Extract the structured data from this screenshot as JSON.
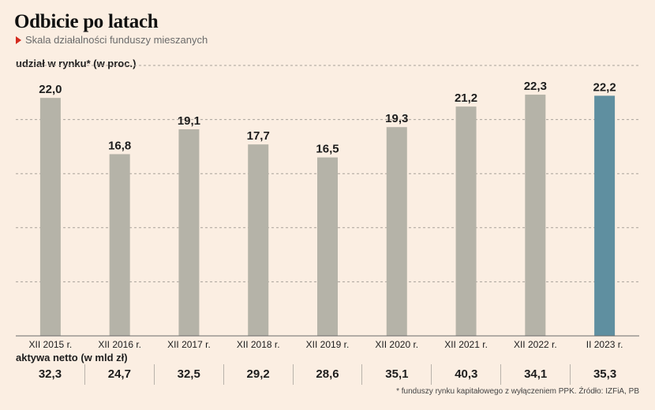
{
  "header": {
    "title": "Odbicie po latach",
    "subtitle": "Skala działalności funduszy mieszanych"
  },
  "y_axis_label": "udział w rynku* (w proc.)",
  "net_assets": {
    "label": "aktywa netto (w mld zł)",
    "values": [
      "32,3",
      "24,7",
      "32,5",
      "29,2",
      "28,6",
      "35,1",
      "40,3",
      "34,1",
      "35,3"
    ]
  },
  "footnote": "* funduszy rynku kapitałowego z wyłączeniem PPK. Źródło: IZFiA, PB",
  "colors": {
    "bar": "#b5b3a8",
    "highlight_bar": "#5f8fa0",
    "background": "#fbeee2",
    "accent": "#d42a1e"
  },
  "chart_data": {
    "type": "bar",
    "categories": [
      "XII 2015 r.",
      "XII 2016 r.",
      "XII 2017 r.",
      "XII 2018 r.",
      "XII 2019 r.",
      "XII 2020 r.",
      "XII 2021 r.",
      "XII 2022 r.",
      "II 2023 r."
    ],
    "values": [
      22.0,
      16.8,
      19.1,
      17.7,
      16.5,
      19.3,
      21.2,
      22.3,
      22.2
    ],
    "value_labels": [
      "22,0",
      "16,8",
      "19,1",
      "17,7",
      "16,5",
      "19,3",
      "21,2",
      "22,3",
      "22,2"
    ],
    "highlight_index": 8,
    "ylabel": "udział w rynku* (w proc.)",
    "ylim": [
      0,
      25
    ],
    "grid": true
  }
}
